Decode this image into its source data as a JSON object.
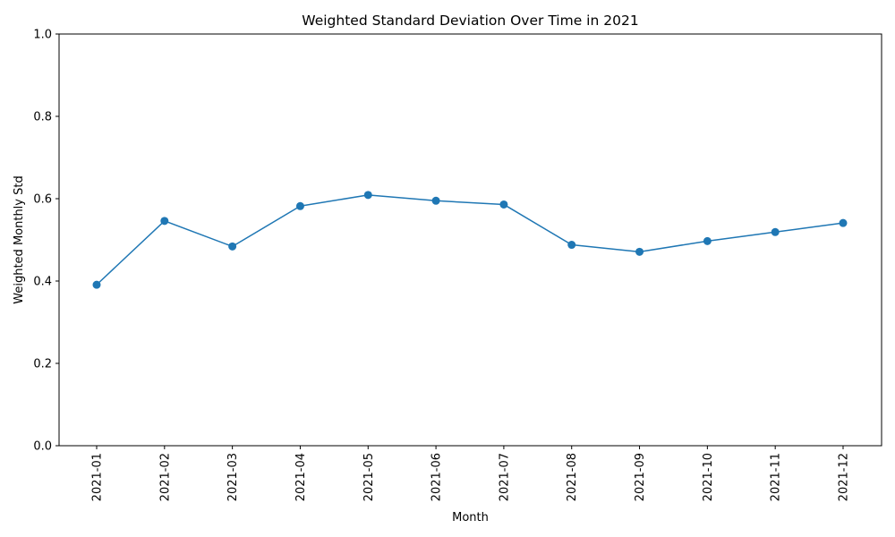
{
  "chart_data": {
    "type": "line",
    "title": "Weighted Standard Deviation Over Time in 2021",
    "xlabel": "Month",
    "ylabel": "Weighted Monthly Std",
    "ylim": [
      0,
      1.0
    ],
    "yticks": [
      "0.0",
      "0.2",
      "0.4",
      "0.6",
      "0.8",
      "1.0"
    ],
    "categories": [
      "2021-01",
      "2021-02",
      "2021-03",
      "2021-04",
      "2021-05",
      "2021-06",
      "2021-07",
      "2021-08",
      "2021-09",
      "2021-10",
      "2021-11",
      "2021-12"
    ],
    "series": [
      {
        "name": "Weighted Monthly Std",
        "color": "#1f77b4",
        "marker": "circle",
        "values": [
          0.391,
          0.546,
          0.484,
          0.582,
          0.609,
          0.595,
          0.586,
          0.488,
          0.471,
          0.497,
          0.519,
          0.541
        ]
      }
    ],
    "grid": false,
    "legend": "none"
  }
}
